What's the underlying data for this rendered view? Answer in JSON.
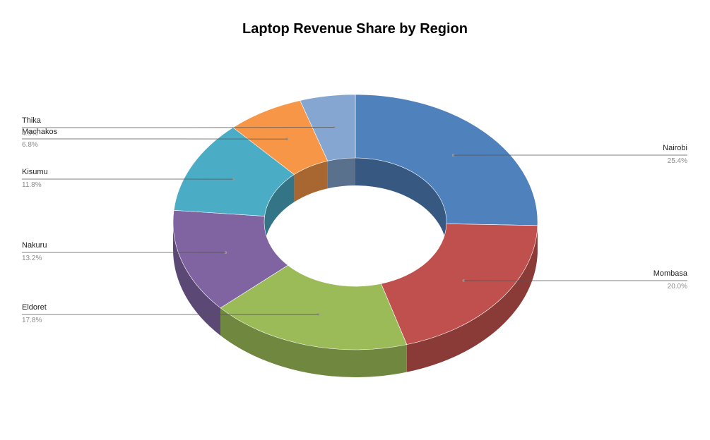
{
  "chart_data": {
    "type": "pie",
    "variant": "3d-donut",
    "title": "Laptop Revenue Share by Region",
    "categories": [
      "Nairobi",
      "Mombasa",
      "Eldoret",
      "Nakuru",
      "Kisumu",
      "Machakos",
      "Thika"
    ],
    "values": [
      25.4,
      20.0,
      17.8,
      13.2,
      11.8,
      6.8,
      4.9
    ],
    "labels": [
      "25.4%",
      "20.0%",
      "17.8%",
      "13.2%",
      "11.8%",
      "6.8%",
      "4.9%"
    ],
    "colors": [
      "#4f81bd",
      "#c0504d",
      "#9bbb59",
      "#8064a2",
      "#4bacc6",
      "#f79646",
      "#84a6d1"
    ]
  }
}
